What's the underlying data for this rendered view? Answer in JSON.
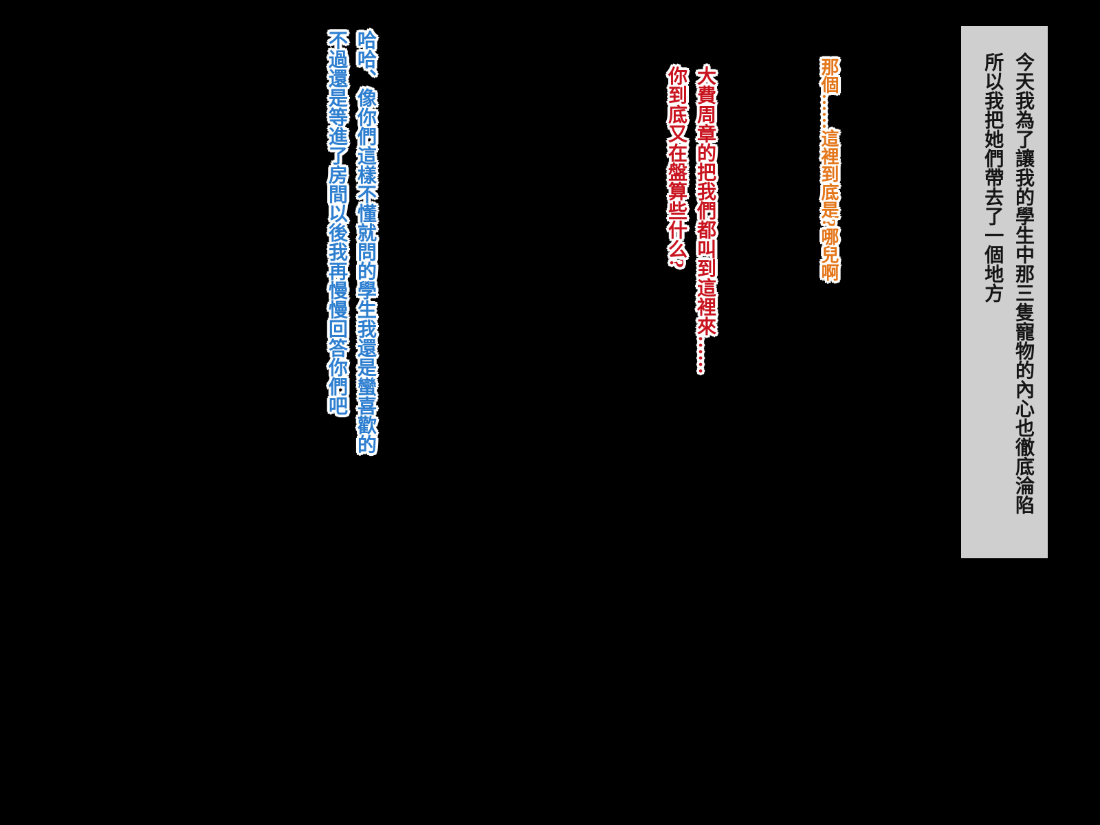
{
  "colors": {
    "page-bg": "#000000",
    "narration-bg": "#cfcfcf",
    "narration-text": "#151515",
    "speech-orange": "#e4761a",
    "speech-red": "#c9141f",
    "speech-blue": "#2e7fd0",
    "outline": "#ffffff"
  },
  "narration": {
    "line1": "今天我為了讓我的學生中那三隻寵物的內心也徹底淪陷",
    "line2": "所以我把她們帶去了一個地方"
  },
  "speech_orange": {
    "line1": "那個……這裡到底是?哪兒啊"
  },
  "speech_red": {
    "line1": "大費周章的把我們都叫到這裡來……",
    "line2": "你到底又在盤算些什么?"
  },
  "speech_blue": {
    "line1": "哈哈、像你們這樣不懂就問的學生我還是蠻喜歡的",
    "line2": "不過還是等進了房間以後我再慢慢回答你們吧"
  }
}
